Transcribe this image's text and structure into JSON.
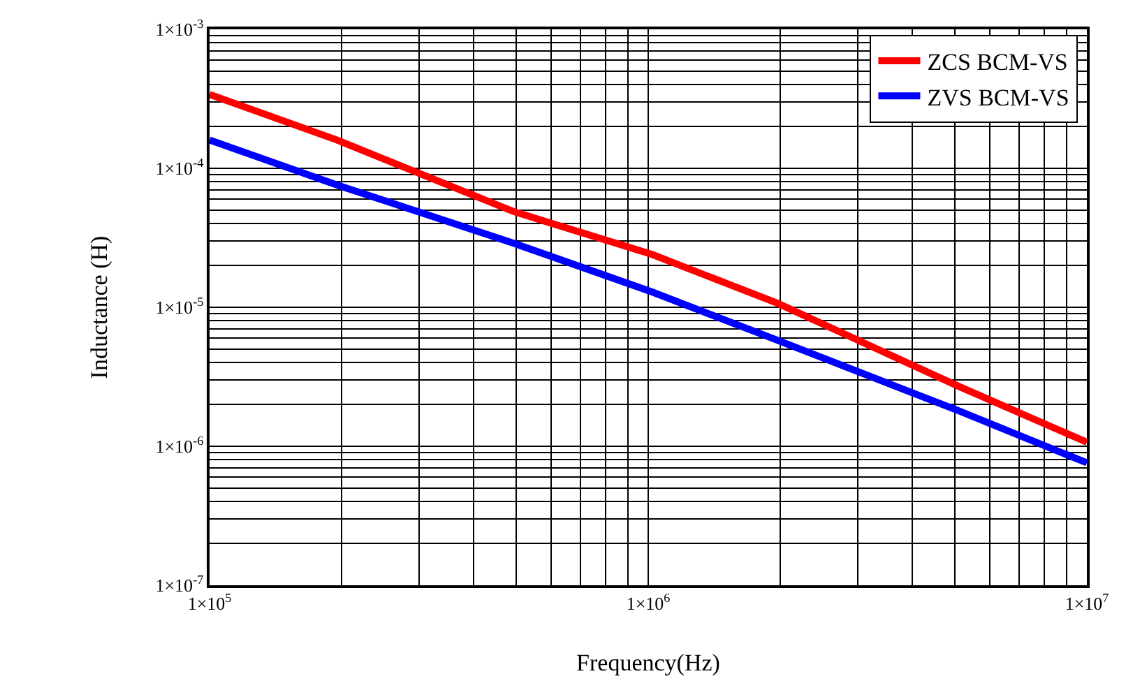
{
  "chart_data": {
    "type": "line",
    "xlabel": "Frequency(Hz)",
    "ylabel": "Inductance (H)",
    "log": "xy",
    "grid": true,
    "legend": "top right",
    "line_style": "solid",
    "marker": "none",
    "x": [
      100000,
      195000,
      492000,
      1020000,
      1970000,
      5100000,
      10000000
    ],
    "series": [
      {
        "name": "ZCS BCM-VS",
        "color": "#ff0000",
        "values": [
          0.00034,
          0.00016,
          4.9e-05,
          2.4e-05,
          1.07e-05,
          2.7e-06,
          1.07e-06
        ]
      },
      {
        "name": "ZVS BCM-VS",
        "color": "#0000ff",
        "values": [
          0.00016,
          7.6e-05,
          2.9e-05,
          1.29e-05,
          5.8e-06,
          1.8e-06,
          7.6e-07
        ]
      }
    ],
    "xlim": [
      100000,
      10000000
    ],
    "ylim": [
      1e-07,
      0.001
    ],
    "xticks": [
      {
        "value": 100000,
        "label": "1×10$^{5}$"
      },
      {
        "value": 1000000,
        "label": "1×10$^{6}$"
      },
      {
        "value": 10000000,
        "label": "1×10$^{7}$"
      }
    ],
    "yticks": [
      {
        "value": 1e-07,
        "label": "1×10$^{-7}$"
      },
      {
        "value": 1e-06,
        "label": "1×10$^{-6}$"
      },
      {
        "value": 1e-05,
        "label": "1×10$^{-5}$"
      },
      {
        "value": 0.0001,
        "label": "1×10$^{-4}$"
      },
      {
        "value": 0.001,
        "label": "1×10$^{-3}$"
      }
    ]
  }
}
